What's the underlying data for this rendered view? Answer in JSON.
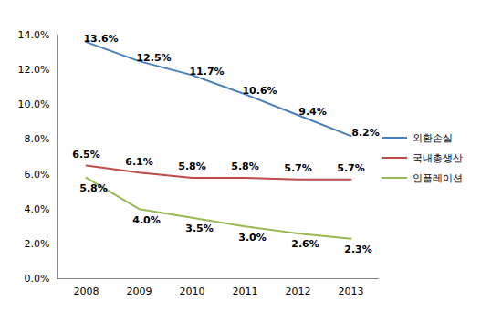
{
  "chart_data": {
    "type": "line",
    "categories": [
      "2008",
      "2009",
      "2010",
      "2011",
      "2012",
      "2013"
    ],
    "series": [
      {
        "name": "외환손실",
        "color": "#4a7ebb",
        "values": [
          13.6,
          12.5,
          11.7,
          10.6,
          9.4,
          8.2
        ],
        "value_labels": [
          "13.6%",
          "12.5%",
          "11.7%",
          "10.6%",
          "9.4%",
          "8.2%"
        ]
      },
      {
        "name": "국내총생산",
        "color": "#be4b48",
        "values": [
          6.5,
          6.1,
          5.8,
          5.8,
          5.7,
          5.7
        ],
        "value_labels": [
          "6.5%",
          "6.1%",
          "5.8%",
          "5.8%",
          "5.7%",
          "5.7%"
        ]
      },
      {
        "name": "인플레이션",
        "color": "#98b954",
        "values": [
          5.8,
          4.0,
          3.5,
          3.0,
          2.6,
          2.3
        ],
        "value_labels": [
          "5.8%",
          "4.0%",
          "3.5%",
          "3.0%",
          "2.6%",
          "2.3%"
        ]
      }
    ],
    "ylim": [
      0,
      14
    ],
    "yticks": [
      {
        "value": 0,
        "label": "0.0%"
      },
      {
        "value": 2,
        "label": "2.0%"
      },
      {
        "value": 4,
        "label": "4.0%"
      },
      {
        "value": 6,
        "label": "6.0%"
      },
      {
        "value": 8,
        "label": "8.0%"
      },
      {
        "value": 10,
        "label": "10.0%"
      },
      {
        "value": 12,
        "label": "12.0%"
      },
      {
        "value": 14,
        "label": "14.0%"
      }
    ],
    "grid": false,
    "legend": "right",
    "data_labels": true
  }
}
